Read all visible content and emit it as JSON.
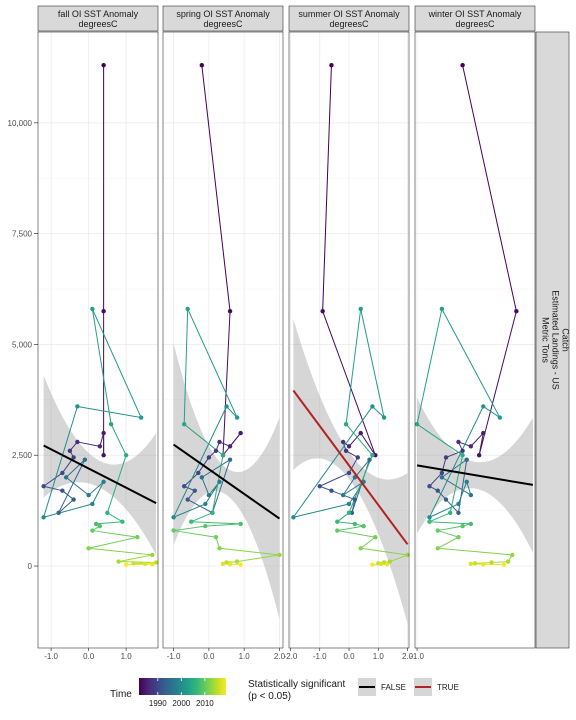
{
  "chart_data": {
    "type": "scatter",
    "facets": [
      {
        "label_line1": "fall OI SST Anomaly",
        "label_line2": "degreesC",
        "xlim": [
          -1.35,
          1.85
        ],
        "xticks": [
          -1.0,
          0.0,
          1.0
        ],
        "tick_labels": [
          "-1.0",
          "0.0",
          "1.0"
        ],
        "trend": {
          "x0": -1.2,
          "y0": 2720,
          "x1": 1.8,
          "y1": 1420,
          "significant": false,
          "band_lo_end": 250,
          "band_hi_end": 3000
        }
      },
      {
        "label_line1": "spring OI SST Anomaly",
        "label_line2": "degreesC",
        "xlim": [
          -1.3,
          2.1
        ],
        "xticks": [
          -1.0,
          0.0,
          1.0,
          2.0
        ],
        "tick_labels": [
          "-1.0",
          "0.0",
          "1.0",
          "2.0"
        ],
        "trend": {
          "x0": -1.0,
          "y0": 2740,
          "x1": 2.0,
          "y1": 1070,
          "significant": false,
          "band_lo_end": -1200,
          "band_hi_end": 3350
        }
      },
      {
        "label_line1": "summer OI SST Anomaly",
        "label_line2": "degreesC",
        "xlim": [
          -2.05,
          2.05
        ],
        "xticks": [
          -2.0,
          -1.0,
          0.0,
          1.0,
          2.0
        ],
        "tick_labels": [
          "-2.0",
          "-1.0",
          "0.0",
          "1.0",
          "2.0"
        ],
        "trend": {
          "x0": -1.9,
          "y0": 3960,
          "x1": 2.0,
          "y1": 490,
          "significant": true,
          "band_lo_end": -1300,
          "band_hi_end": 2100
        }
      },
      {
        "label_line1": "winter OI SST Anomaly",
        "label_line2": "degreesC",
        "xlim": [
          -1.05,
          1.85
        ],
        "xticks": [
          -1.0
        ],
        "tick_labels": [
          "-1.0"
        ],
        "trend": {
          "x0": -1.0,
          "y0": 2270,
          "x1": 1.8,
          "y1": 1830,
          "significant": false,
          "band_lo_end": 300,
          "band_hi_end": 3350
        }
      }
    ],
    "ylim": [
      -1850,
      12050
    ],
    "yticks": [
      0,
      2500,
      5000,
      7500,
      10000
    ],
    "ytick_labels": [
      "0",
      "2,500",
      "5,000",
      "7,500",
      "10,000"
    ],
    "strip_right_label": [
      "Catch",
      "Estimated Landings - US",
      "Metric Tons"
    ],
    "years": [
      1982,
      1983,
      1984,
      1985,
      1986,
      1987,
      1988,
      1989,
      1990,
      1991,
      1992,
      1993,
      1994,
      1995,
      1996,
      1997,
      1998,
      1999,
      2000,
      2001,
      2002,
      2003,
      2004,
      2005,
      2006,
      2007,
      2008,
      2009,
      2010,
      2011,
      2012,
      2013,
      2014,
      2015,
      2016,
      2017,
      2018,
      2019
    ],
    "catch": [
      11300,
      5750,
      2500,
      3000,
      2700,
      2800,
      2600,
      2450,
      2100,
      1800,
      1700,
      1500,
      1200,
      2400,
      2000,
      1600,
      1900,
      1400,
      1100,
      3600,
      3350,
      5800,
      3200,
      2500,
      1200,
      1000,
      950,
      900,
      800,
      650,
      400,
      250,
      100,
      80,
      60,
      50,
      40,
      30
    ],
    "sst": {
      "fall": [
        0.4,
        0.4,
        0.4,
        0.4,
        0.3,
        -0.3,
        -0.5,
        -0.4,
        -0.7,
        -1.2,
        -0.7,
        -0.4,
        -0.8,
        -0.1,
        -0.6,
        0.0,
        0.4,
        0.1,
        -1.2,
        -0.3,
        1.4,
        0.1,
        0.6,
        1.0,
        0.5,
        0.9,
        0.2,
        0.3,
        0.1,
        1.3,
        0.0,
        1.7,
        0.8,
        1.8,
        1.2,
        1.5,
        1.7,
        1.0
      ],
      "spring": [
        -0.2,
        0.6,
        0.4,
        0.9,
        0.6,
        0.3,
        0.2,
        0.0,
        -0.3,
        -0.7,
        -0.4,
        -0.6,
        0.1,
        0.6,
        -0.2,
        0.0,
        0.3,
        -0.1,
        -1.0,
        0.5,
        0.8,
        -0.6,
        -0.7,
        0.4,
        0.1,
        -0.5,
        0.9,
        -0.1,
        -1.0,
        0.2,
        0.3,
        2.0,
        0.8,
        0.5,
        0.6,
        0.4,
        0.6,
        0.9
      ],
      "summer": [
        -0.6,
        -0.9,
        0.9,
        0.4,
        0.0,
        -0.2,
        -0.1,
        0.3,
        0.0,
        -1.0,
        -0.6,
        0.2,
        0.1,
        0.7,
        0.2,
        -0.2,
        0.5,
        0.0,
        -1.9,
        0.8,
        1.2,
        0.4,
        -0.1,
        0.8,
        0.0,
        -0.4,
        0.2,
        0.5,
        -0.4,
        0.9,
        0.4,
        2.0,
        1.4,
        1.2,
        1.0,
        1.1,
        1.3,
        0.8
      ],
      "winter": [
        0.1,
        1.4,
        0.5,
        0.6,
        0.3,
        0.0,
        0.1,
        -0.3,
        -0.4,
        -0.7,
        -0.5,
        -0.3,
        0.0,
        0.2,
        -0.4,
        0.3,
        0.2,
        0.0,
        -0.7,
        0.6,
        1.0,
        -0.4,
        -1.0,
        0.1,
        -0.2,
        -0.7,
        0.3,
        0.1,
        -0.5,
        0.0,
        -0.5,
        1.3,
        1.2,
        0.8,
        0.4,
        0.3,
        0.6,
        1.1
      ]
    },
    "legend": {
      "time_title": "Time",
      "time_ticks": [
        "1990",
        "2000",
        "2010"
      ],
      "time_tick_years": [
        1990,
        2000,
        2010
      ],
      "time_range": [
        1982,
        2019
      ],
      "sig_title_line1": "Statistically significant",
      "sig_title_line2": "(p < 0.05)",
      "false_label": "FALSE",
      "true_label": "TRUE"
    },
    "colors": {
      "false_line": "#000000",
      "true_line": "#b22222",
      "band": "#999999",
      "viridis": [
        "#440154",
        "#482878",
        "#3e4989",
        "#31688e",
        "#26828e",
        "#1f9e89",
        "#35b779",
        "#6ece58",
        "#b5de2b",
        "#fde725"
      ]
    },
    "grid": true
  }
}
